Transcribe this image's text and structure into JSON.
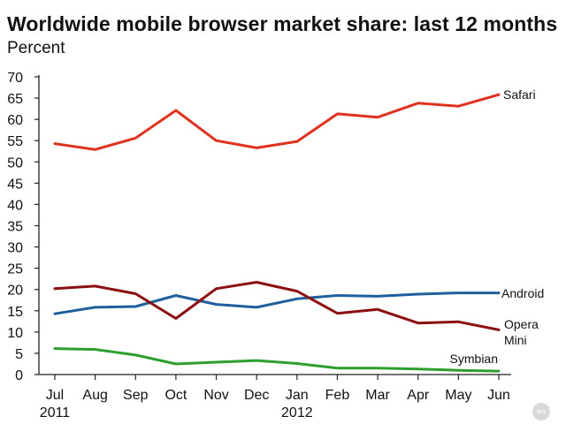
{
  "title": "Worldwide mobile browser market share: last 12 months",
  "subtitle": "Percent",
  "badge_text": "ars",
  "chart_data": {
    "type": "line",
    "title": "Worldwide mobile browser market share: last 12 months",
    "ylabel": "Percent",
    "xlabel": "",
    "ylim": [
      0,
      70
    ],
    "yticks": [
      0,
      5,
      10,
      15,
      20,
      25,
      30,
      35,
      40,
      45,
      50,
      55,
      60,
      65,
      70
    ],
    "categories": [
      "Jul",
      "Aug",
      "Sep",
      "Oct",
      "Nov",
      "Dec",
      "Jan",
      "Feb",
      "Mar",
      "Apr",
      "May",
      "Jun"
    ],
    "year_labels": [
      {
        "index": 0,
        "label": "2011"
      },
      {
        "index": 6,
        "label": "2012"
      }
    ],
    "grid": false,
    "legend": "inline-right",
    "series": [
      {
        "name": "Safari",
        "color": "#e0301e",
        "values": [
          54.3,
          52.9,
          55.6,
          62.1,
          55.0,
          53.3,
          54.8,
          61.3,
          60.5,
          63.8,
          63.1,
          65.8
        ]
      },
      {
        "name": "Android",
        "color": "#1f5f9e",
        "values": [
          14.3,
          15.8,
          16.0,
          18.6,
          16.5,
          15.8,
          17.8,
          18.6,
          18.4,
          18.9,
          19.2,
          19.2
        ]
      },
      {
        "name": "Opera Mini",
        "label_lines": [
          "Opera",
          "Mini"
        ],
        "color": "#8b1010",
        "values": [
          20.2,
          20.8,
          19.0,
          13.2,
          20.2,
          21.7,
          19.6,
          14.4,
          15.3,
          12.1,
          12.4,
          10.5
        ]
      },
      {
        "name": "Symbian",
        "color": "#2e9e2e",
        "values": [
          6.1,
          5.9,
          4.6,
          2.5,
          2.9,
          3.3,
          2.6,
          1.5,
          1.5,
          1.3,
          1.0,
          0.8
        ]
      }
    ]
  }
}
